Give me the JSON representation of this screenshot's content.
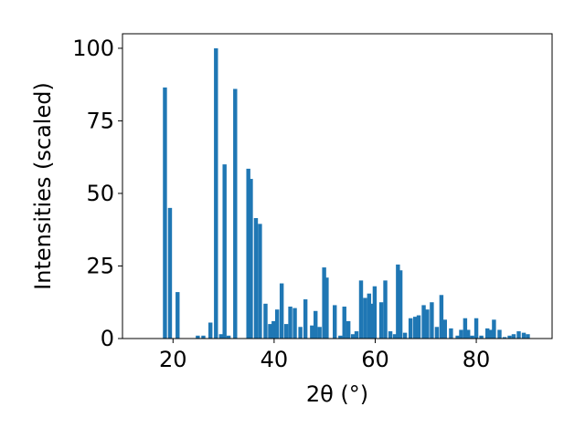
{
  "chart_data": {
    "type": "bar",
    "title": "",
    "xlabel": "2θ (°)",
    "ylabel": "Intensities (scaled)",
    "xlim": [
      10,
      95
    ],
    "ylim": [
      0,
      105
    ],
    "xticks": [
      20,
      40,
      60,
      80
    ],
    "yticks": [
      0,
      25,
      50,
      75,
      100
    ],
    "grid": false,
    "bar_width": 0.8,
    "color": "#1f77b4",
    "x": [
      18.4,
      19.4,
      20.9,
      24.9,
      26.0,
      27.4,
      28.5,
      29.5,
      30.2,
      31.0,
      32.3,
      34.9,
      35.4,
      36.4,
      37.2,
      38.3,
      39.2,
      39.9,
      40.6,
      41.5,
      42.4,
      43.2,
      44.1,
      45.2,
      46.2,
      47.5,
      48.2,
      49.0,
      49.9,
      50.4,
      52.0,
      53.1,
      53.9,
      54.7,
      55.6,
      56.3,
      57.2,
      58.0,
      58.8,
      59.4,
      59.9,
      61.2,
      62.0,
      63.0,
      63.9,
      64.5,
      65.0,
      65.9,
      67.0,
      67.9,
      68.6,
      69.6,
      70.3,
      71.2,
      72.2,
      73.1,
      73.8,
      75.0,
      76.3,
      77.0,
      77.8,
      78.4,
      79.2,
      80.0,
      81.0,
      82.2,
      82.8,
      83.5,
      84.6,
      85.6,
      86.6,
      87.4,
      88.4,
      89.4,
      90.2
    ],
    "values": [
      86.5,
      45.0,
      16.0,
      1.0,
      1.0,
      5.5,
      100.0,
      1.5,
      60.0,
      1.0,
      86.0,
      58.5,
      55.0,
      41.5,
      39.5,
      12.0,
      5.0,
      6.0,
      10.0,
      19.0,
      5.0,
      11.0,
      10.5,
      4.0,
      13.5,
      4.5,
      9.5,
      4.0,
      24.5,
      21.0,
      11.5,
      1.0,
      11.0,
      6.0,
      1.5,
      2.5,
      20.0,
      14.0,
      15.5,
      12.0,
      18.0,
      12.5,
      20.0,
      2.5,
      1.5,
      25.5,
      23.5,
      2.0,
      7.0,
      7.5,
      8.0,
      11.5,
      10.0,
      12.5,
      4.0,
      15.0,
      6.5,
      3.5,
      1.0,
      3.0,
      7.0,
      3.0,
      1.0,
      7.0,
      1.0,
      3.5,
      3.0,
      6.5,
      3.0,
      0.5,
      1.0,
      1.5,
      2.5,
      2.0,
      1.5
    ]
  }
}
